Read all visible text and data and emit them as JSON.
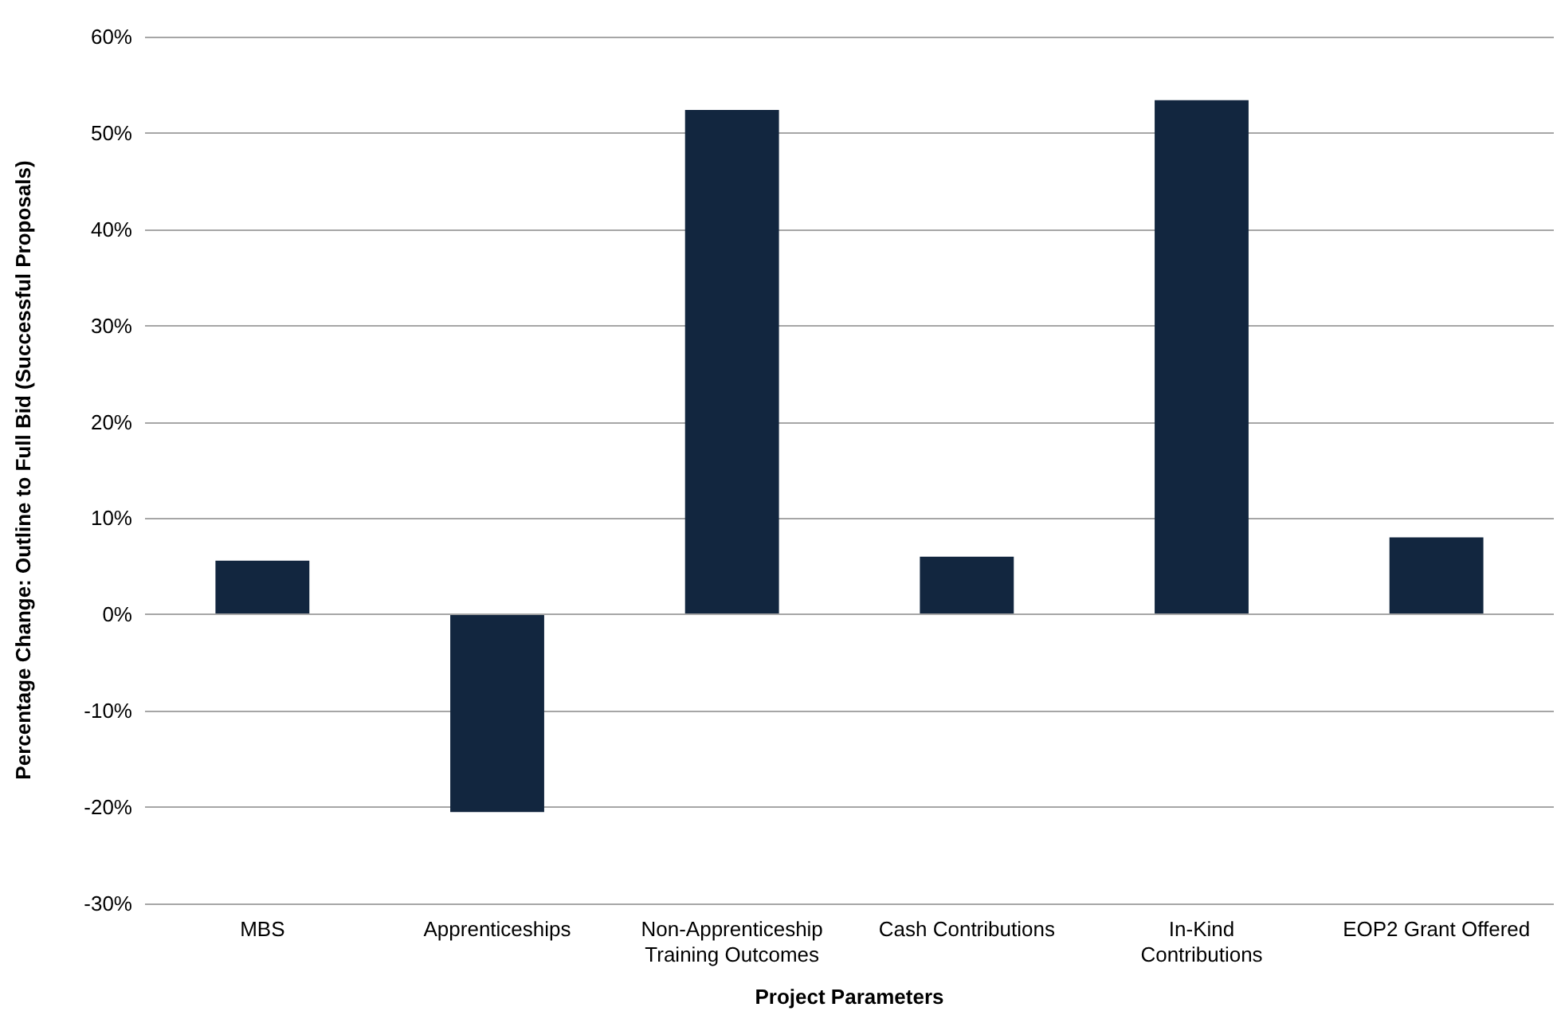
{
  "chart_data": {
    "type": "bar",
    "xlabel": "Project Parameters",
    "ylabel": "Percentage Change: Outline to Full Bid (Successful Proposals)",
    "categories": [
      "MBS",
      "Apprenticeships",
      "Non-Apprenticeship Training Outcomes",
      "Cash Contributions",
      "In-Kind Contributions",
      "EOP2 Grant Offered"
    ],
    "values": [
      5.6,
      -20.5,
      52.4,
      6.0,
      53.4,
      8.0
    ],
    "color": "#12263f",
    "ylim": [
      -30,
      60
    ],
    "yticks": [
      {
        "value": -30,
        "label": "-30%"
      },
      {
        "value": -20,
        "label": "-20%"
      },
      {
        "value": -10,
        "label": "-10%"
      },
      {
        "value": 0,
        "label": "0%"
      },
      {
        "value": 10,
        "label": "10%"
      },
      {
        "value": 20,
        "label": "20%"
      },
      {
        "value": 30,
        "label": "30%"
      },
      {
        "value": 40,
        "label": "40%"
      },
      {
        "value": 50,
        "label": "50%"
      },
      {
        "value": 60,
        "label": "60%"
      }
    ],
    "grid": "y"
  }
}
